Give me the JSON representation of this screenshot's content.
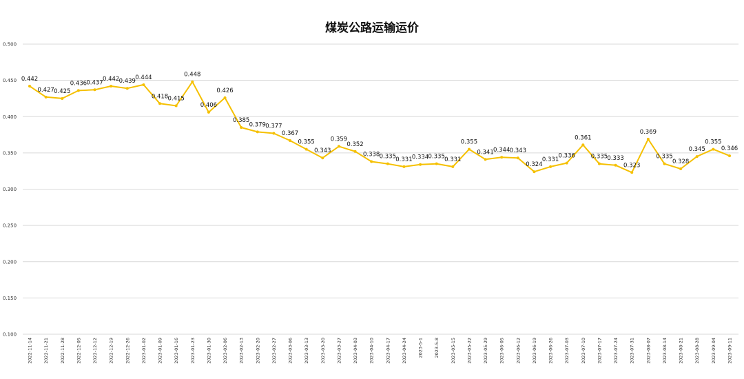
{
  "chart_data": {
    "type": "line",
    "title": "煤炭公路运输运价",
    "xlabel": "",
    "ylabel": "",
    "ylim": [
      0.1,
      0.5
    ],
    "yticks": [
      "0.100",
      "0.150",
      "0.200",
      "0.250",
      "0.300",
      "0.350",
      "0.400",
      "0.450",
      "0.500"
    ],
    "grid": true,
    "legend": "none",
    "line_color": "#F5C000",
    "categories": [
      "2022-11-14",
      "2022-11-21",
      "2022-11-28",
      "2022-12-05",
      "2022-12-12",
      "2022-12-19",
      "2022-12-26",
      "2023-01-02",
      "2023-01-09",
      "2023-01-16",
      "2023-01-23",
      "2023-01-30",
      "2023-02-06",
      "2023-02-13",
      "2023-02-20",
      "2023-02-27",
      "2023-03-06",
      "2023-03-13",
      "2023-03-20",
      "2023-03-27",
      "2023-04-03",
      "2023-04-10",
      "2023-04-17",
      "2023-04-24",
      "2023-5-1",
      "2023-5-8",
      "2023-05-15",
      "2023-05-22",
      "2023-05-29",
      "2023-06-05",
      "2023-06-12",
      "2023-06-19",
      "2023-06-26",
      "2023-07-03",
      "2023-07-10",
      "2023-07-17",
      "2023-07-24",
      "2023-07-31",
      "2023-08-07",
      "2023-08-14",
      "2023-08-21",
      "2023-08-28",
      "2023-09-04",
      "2023-09-11"
    ],
    "series": [
      {
        "values": [
          0.442,
          0.427,
          0.425,
          0.436,
          0.437,
          0.442,
          0.439,
          0.444,
          0.418,
          0.415,
          0.448,
          0.406,
          0.426,
          0.385,
          0.379,
          0.377,
          0.367,
          0.355,
          0.343,
          0.359,
          0.352,
          0.338,
          0.335,
          0.331,
          0.334,
          0.335,
          0.331,
          0.355,
          0.341,
          0.344,
          0.343,
          0.324,
          0.331,
          0.336,
          0.361,
          0.335,
          0.333,
          0.323,
          0.369,
          0.335,
          0.328,
          0.345,
          0.355,
          0.346
        ]
      }
    ]
  }
}
